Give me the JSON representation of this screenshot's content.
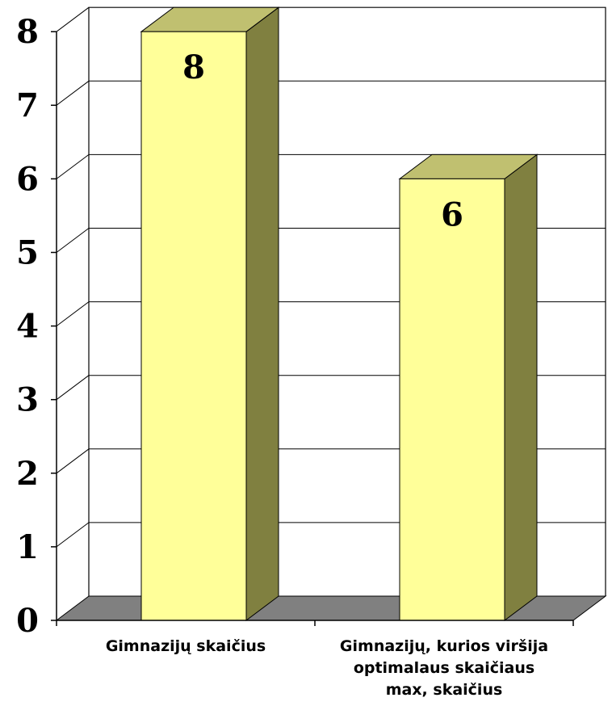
{
  "chart_data": {
    "type": "bar",
    "title": "",
    "xlabel": "",
    "ylabel": "",
    "categories": [
      [
        "Gimnazijų skaičius"
      ],
      [
        "Gimnazijų, kurios viršija",
        "optimalaus skaičiaus",
        "max, skaičius"
      ]
    ],
    "values": [
      8,
      6
    ],
    "data_labels": [
      "8",
      "6"
    ],
    "ylim": [
      0,
      8
    ],
    "yticks": [
      "0",
      "1",
      "2",
      "3",
      "4",
      "5",
      "6",
      "7",
      "8"
    ],
    "grid": true,
    "legend": "none",
    "style": "3d-column"
  },
  "colors": {
    "bar_front": "#FFFF99",
    "bar_side": "#808040",
    "bar_top": "#C0C070",
    "floor": "#808080",
    "grid": "#000000"
  }
}
